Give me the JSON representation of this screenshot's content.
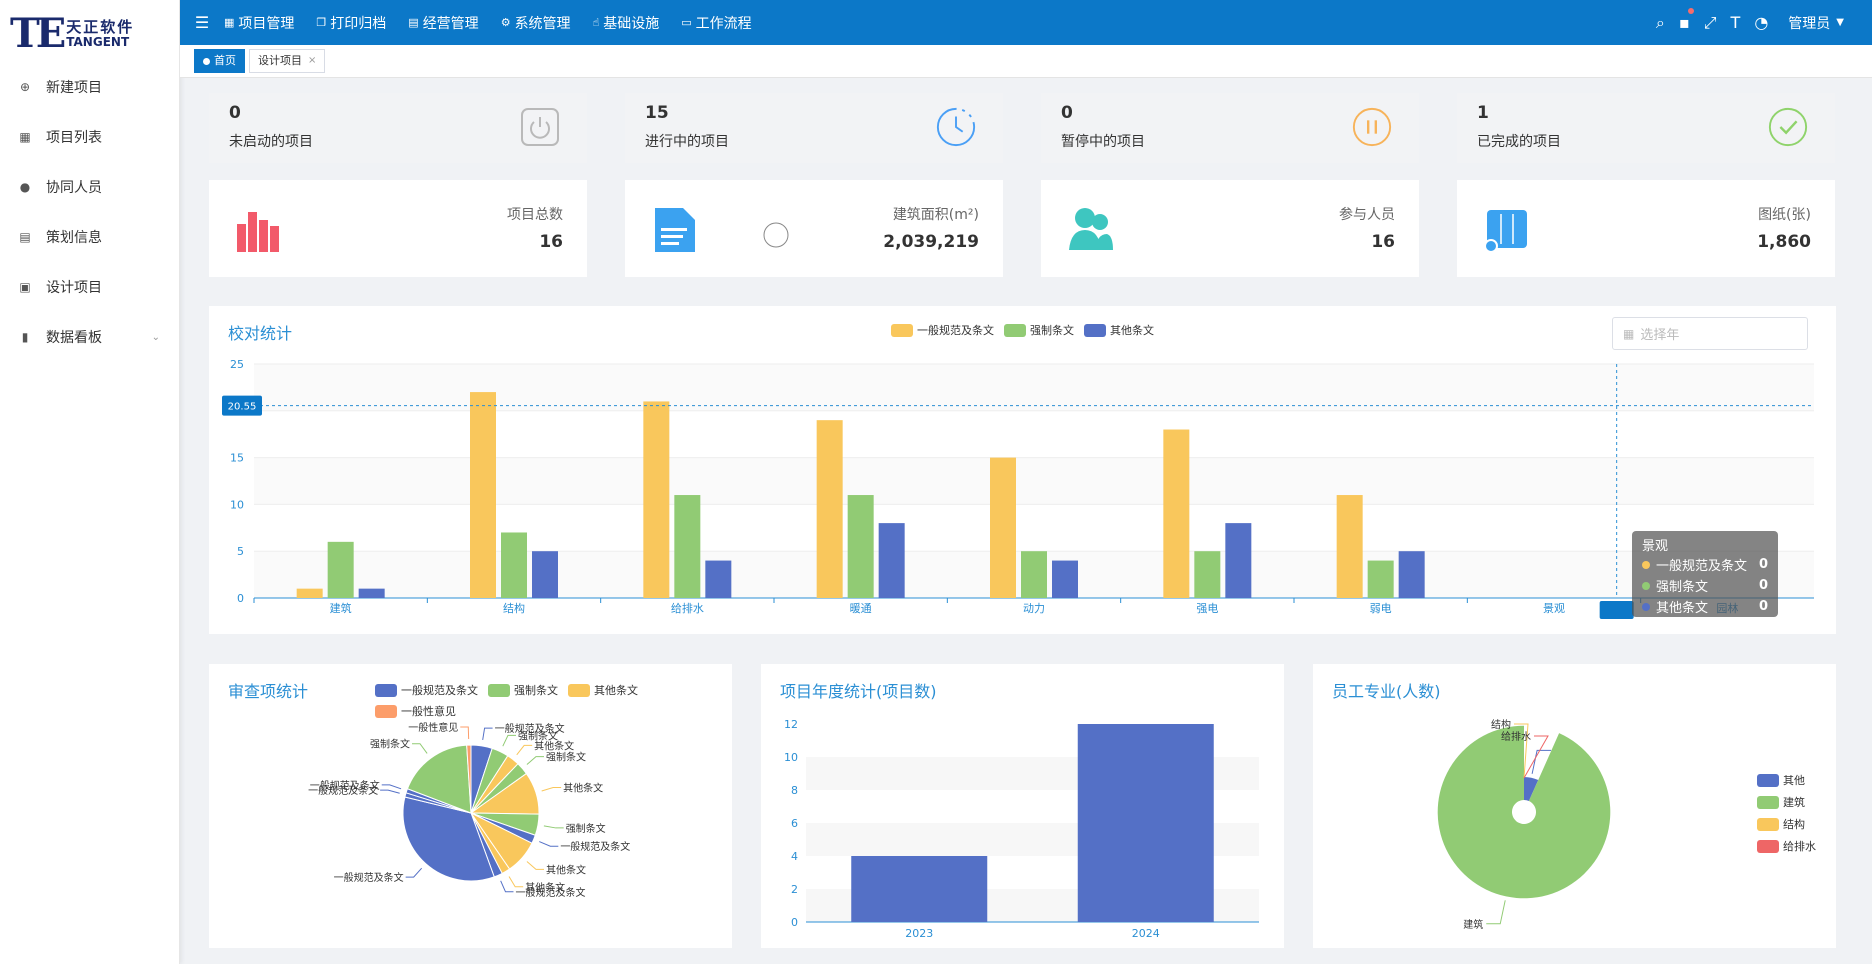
{
  "logo": {
    "cn": "天正软件",
    "en": "TANGENT"
  },
  "sidebar": {
    "items": [
      {
        "label": "新建项目",
        "icon": "new-project-icon"
      },
      {
        "label": "项目列表",
        "icon": "list-icon"
      },
      {
        "label": "协同人员",
        "icon": "user-icon"
      },
      {
        "label": "策划信息",
        "icon": "document-icon"
      },
      {
        "label": "设计项目",
        "icon": "design-icon"
      },
      {
        "label": "数据看板",
        "icon": "bar-chart-icon"
      }
    ]
  },
  "topnav": {
    "items": [
      {
        "label": "项目管理",
        "icon": "grid-icon"
      },
      {
        "label": "打印归档",
        "icon": "copy-icon"
      },
      {
        "label": "经营管理",
        "icon": "list-icon"
      },
      {
        "label": "系统管理",
        "icon": "gear-icon"
      },
      {
        "label": "基础设施",
        "icon": "thumb-icon"
      },
      {
        "label": "工作流程",
        "icon": "monitor-icon"
      }
    ],
    "user": "管理员"
  },
  "tabs": [
    {
      "label": "首页",
      "active": true
    },
    {
      "label": "设计项目",
      "active": false
    }
  ],
  "status_cards": [
    {
      "value": "0",
      "label": "未启动的项目",
      "icon": "power-icon",
      "color": "#b9b9b9"
    },
    {
      "value": "15",
      "label": "进行中的项目",
      "icon": "clock-icon",
      "color": "#4a9ff5"
    },
    {
      "value": "0",
      "label": "暂停中的项目",
      "icon": "pause-icon",
      "color": "#f7b35a"
    },
    {
      "value": "1",
      "label": "已完成的项目",
      "icon": "check-icon",
      "color": "#8fd36b"
    }
  ],
  "stat_cards": [
    {
      "label": "项目总数",
      "value": "16",
      "icon": "bar-chart-icon",
      "color": "#f25a6a"
    },
    {
      "label": "建筑面积(m²)",
      "value": "2,039,219",
      "icon": "file-icon",
      "color": "#3ba2f0"
    },
    {
      "label": "参与人员",
      "value": "16",
      "icon": "people-icon",
      "color": "#3ec6c0"
    },
    {
      "label": "图纸(张)",
      "value": "1,860",
      "icon": "map-icon",
      "color": "#3ba2f0"
    }
  ],
  "jiaodui": {
    "title": "校对统计",
    "year_placeholder": "选择年",
    "pointer_value": "20.55",
    "tooltip": {
      "category": "景观",
      "rows": [
        {
          "name": "一般规范及条文",
          "value": "0"
        },
        {
          "name": "强制条文",
          "value": "0"
        },
        {
          "name": "其他条文",
          "value": "0"
        }
      ]
    }
  },
  "shencha": {
    "title": "审查项统计"
  },
  "niandu": {
    "title": "项目年度统计(项目数)"
  },
  "yuangong": {
    "title": "员工专业(人数)"
  },
  "chart_data": [
    {
      "type": "bar",
      "title": "校对统计",
      "categories": [
        "建筑",
        "结构",
        "给排水",
        "暖通",
        "动力",
        "强电",
        "弱电",
        "景观",
        "园林"
      ],
      "series": [
        {
          "name": "一般规范及条文",
          "color": "#f9c75c",
          "values": [
            1,
            22,
            21,
            19,
            15,
            18,
            11,
            0,
            0
          ]
        },
        {
          "name": "强制条文",
          "color": "#91cb74",
          "values": [
            6,
            7,
            11,
            11,
            5,
            5,
            4,
            0,
            0
          ]
        },
        {
          "name": "其他条文",
          "color": "#5470c6",
          "values": [
            1,
            5,
            4,
            8,
            4,
            8,
            5,
            0,
            0
          ]
        }
      ],
      "ylim": [
        0,
        25
      ],
      "yticks": [
        0,
        5,
        10,
        15,
        20,
        25
      ]
    },
    {
      "type": "pie",
      "title": "审查项统计",
      "legend": [
        {
          "name": "一般规范及条文",
          "color": "#5470c6"
        },
        {
          "name": "强制条文",
          "color": "#91cb74"
        },
        {
          "name": "其他条文",
          "color": "#f9c75c"
        },
        {
          "name": "一般性意见",
          "color": "#fc9d6a"
        }
      ],
      "slices": [
        {
          "name": "一般规范及条文",
          "value": 5,
          "color": "#5470c6"
        },
        {
          "name": "强制条文",
          "value": 4,
          "color": "#91cb74"
        },
        {
          "name": "其他条文",
          "value": 3,
          "color": "#f9c75c"
        },
        {
          "name": "强制条文",
          "value": 3,
          "color": "#91cb74"
        },
        {
          "name": "其他条文",
          "value": 10,
          "color": "#f9c75c"
        },
        {
          "name": "强制条文",
          "value": 5,
          "color": "#91cb74"
        },
        {
          "name": "一般规范及条文",
          "value": 2,
          "color": "#5470c6"
        },
        {
          "name": "其他条文",
          "value": 8,
          "color": "#f9c75c"
        },
        {
          "name": "其他条文",
          "value": 2,
          "color": "#f9c75c"
        },
        {
          "name": "一般规范及条文",
          "value": 2,
          "color": "#5470c6"
        },
        {
          "name": "一般规范及条文",
          "value": 34,
          "color": "#5470c6"
        },
        {
          "name": "一般规范及条文",
          "value": 1,
          "color": "#5470c6"
        },
        {
          "name": "一般规范及条文",
          "value": 1,
          "color": "#5470c6"
        },
        {
          "name": "强制条文",
          "value": 18,
          "color": "#91cb74"
        },
        {
          "name": "一般性意见",
          "value": 1,
          "color": "#fc9d6a"
        }
      ]
    },
    {
      "type": "bar",
      "title": "项目年度统计(项目数)",
      "categories": [
        "2023",
        "2024"
      ],
      "values": [
        4,
        12
      ],
      "color": "#5470c6",
      "ylim": [
        0,
        12
      ],
      "yticks": [
        0,
        2,
        4,
        6,
        8,
        10,
        12
      ]
    },
    {
      "type": "pie",
      "title": "员工专业(人数)",
      "legend": [
        {
          "name": "其他",
          "color": "#5470c6"
        },
        {
          "name": "建筑",
          "color": "#91cb74"
        },
        {
          "name": "结构",
          "color": "#f9c75c"
        },
        {
          "name": "给排水",
          "color": "#ee6666"
        }
      ],
      "slices": [
        {
          "name": "其他",
          "value": 1,
          "color": "#5470c6"
        },
        {
          "name": "建筑",
          "value": 14,
          "color": "#91cb74"
        },
        {
          "name": "结构",
          "value": 0,
          "color": "#f9c75c"
        },
        {
          "name": "给排水",
          "value": 0,
          "color": "#ee6666"
        }
      ]
    }
  ]
}
